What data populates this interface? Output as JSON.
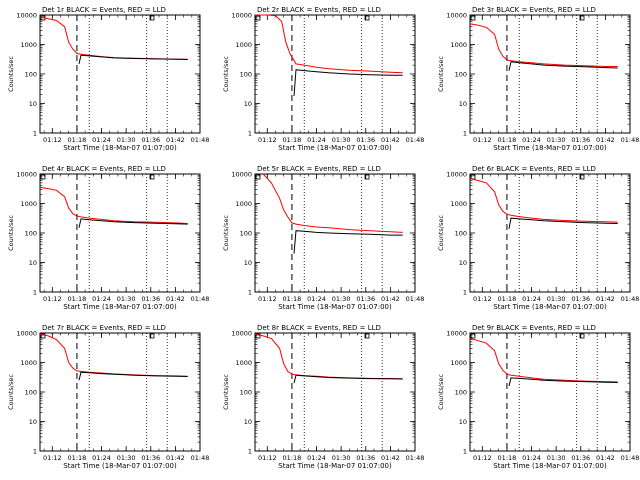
{
  "figure": {
    "xlabel": "Start Time (18-Mar-07 01:07:00)",
    "ylabel": "Counts/sec",
    "x_tick_labels": [
      "01:12",
      "01:18",
      "01:24",
      "01:30",
      "01:36",
      "01:42",
      "01:48"
    ],
    "y_tick_labels": [
      "1",
      "10",
      "100",
      "1000",
      "10000"
    ],
    "colors": {
      "events": "#000000",
      "lld": "#ff0000",
      "axes": "#000000",
      "background": "#ffffff"
    }
  },
  "chart_data": [
    {
      "type": "line",
      "title": "Det 1r BLACK = Events, RED = LLD",
      "xlabel": "Start Time (18-Mar-07 01:07:00)",
      "ylabel": "Counts/sec",
      "x_unit": "minutes after 01:07:00",
      "xlim": [
        2,
        41
      ],
      "ylim": [
        1,
        10000
      ],
      "y_scale": "log",
      "x_ticks": [
        "01:12",
        "01:18",
        "01:24",
        "01:30",
        "01:36",
        "01:42",
        "01:48"
      ],
      "dashed_line_x": 11,
      "dotted_lines_x": [
        14,
        28,
        33
      ],
      "series": [
        {
          "name": "RED",
          "color": "#ff0000",
          "x": [
            2,
            4,
            6,
            8,
            9,
            10,
            11,
            12,
            14,
            17,
            20,
            25,
            30,
            35,
            38
          ],
          "y": [
            8500,
            7500,
            6500,
            4000,
            1200,
            700,
            500,
            470,
            430,
            390,
            360,
            340,
            330,
            320,
            315
          ]
        },
        {
          "name": "BLACK",
          "color": "#000000",
          "x": [
            11.5,
            12,
            14,
            17,
            20,
            25,
            30,
            35,
            38
          ],
          "y": [
            220,
            430,
            410,
            380,
            350,
            335,
            325,
            315,
            310
          ]
        }
      ]
    },
    {
      "type": "line",
      "title": "Det 2r BLACK = Events, RED = LLD",
      "xlabel": "Start Time (18-Mar-07 01:07:00)",
      "ylabel": "Counts/sec",
      "x_unit": "minutes after 01:07:00",
      "xlim": [
        2,
        41
      ],
      "ylim": [
        1,
        10000
      ],
      "y_scale": "log",
      "x_ticks": [
        "01:12",
        "01:18",
        "01:24",
        "01:30",
        "01:36",
        "01:42",
        "01:48"
      ],
      "dashed_line_x": 11,
      "dotted_lines_x": [
        14,
        28,
        33
      ],
      "series": [
        {
          "name": "RED",
          "color": "#ff0000",
          "x": [
            2,
            5,
            7,
            8.5,
            9.5,
            10.5,
            12,
            14,
            17,
            20,
            25,
            30,
            35,
            38
          ],
          "y": [
            10000,
            10000,
            9500,
            6000,
            1200,
            500,
            220,
            200,
            170,
            150,
            135,
            125,
            115,
            110
          ]
        },
        {
          "name": "BLACK",
          "color": "#000000",
          "x": [
            11.5,
            12,
            14,
            17,
            20,
            25,
            30,
            35,
            38
          ],
          "y": [
            18,
            140,
            130,
            120,
            110,
            100,
            95,
            90,
            90
          ]
        }
      ]
    },
    {
      "type": "line",
      "title": "Det 3r BLACK = Events, RED = LLD",
      "xlabel": "Start Time (18-Mar-07 01:07:00)",
      "ylabel": "Counts/sec",
      "x_unit": "minutes after 01:07:00",
      "xlim": [
        2,
        41
      ],
      "ylim": [
        1,
        10000
      ],
      "y_scale": "log",
      "x_ticks": [
        "01:12",
        "01:18",
        "01:24",
        "01:30",
        "01:36",
        "01:42",
        "01:48"
      ],
      "dashed_line_x": 11,
      "dotted_lines_x": [
        14,
        28,
        33
      ],
      "series": [
        {
          "name": "RED",
          "color": "#ff0000",
          "x": [
            2,
            4,
            6,
            8,
            9,
            10,
            11,
            12,
            14,
            17,
            20,
            25,
            30,
            35,
            38
          ],
          "y": [
            5000,
            4500,
            3800,
            2200,
            700,
            400,
            300,
            280,
            260,
            240,
            220,
            200,
            190,
            180,
            180
          ]
        },
        {
          "name": "BLACK",
          "color": "#000000",
          "x": [
            11.5,
            12,
            14,
            17,
            20,
            25,
            30,
            35,
            38
          ],
          "y": [
            130,
            260,
            240,
            220,
            200,
            185,
            175,
            165,
            160
          ]
        }
      ]
    },
    {
      "type": "line",
      "title": "Det 4r BLACK = Events, RED = LLD",
      "xlabel": "Start Time (18-Mar-07 01:07:00)",
      "ylabel": "Counts/sec",
      "x_unit": "minutes after 01:07:00",
      "xlim": [
        2,
        41
      ],
      "ylim": [
        1,
        10000
      ],
      "y_scale": "log",
      "x_ticks": [
        "01:12",
        "01:18",
        "01:24",
        "01:30",
        "01:36",
        "01:42",
        "01:48"
      ],
      "dashed_line_x": 11,
      "dotted_lines_x": [
        14,
        28,
        33
      ],
      "series": [
        {
          "name": "RED",
          "color": "#ff0000",
          "x": [
            2,
            4,
            6,
            8,
            9,
            10,
            11,
            12,
            14,
            17,
            20,
            25,
            30,
            35,
            38
          ],
          "y": [
            3500,
            3200,
            2800,
            1700,
            700,
            450,
            380,
            350,
            320,
            290,
            260,
            240,
            230,
            220,
            210
          ]
        },
        {
          "name": "BLACK",
          "color": "#000000",
          "x": [
            11.5,
            12,
            14,
            17,
            20,
            25,
            30,
            35,
            38
          ],
          "y": [
            150,
            300,
            280,
            260,
            240,
            225,
            215,
            205,
            200
          ]
        }
      ]
    },
    {
      "type": "line",
      "title": "Det 5r BLACK = Events, RED = LLD",
      "xlabel": "Start Time (18-Mar-07 01:07:00)",
      "ylabel": "Counts/sec",
      "x_unit": "minutes after 01:07:00",
      "xlim": [
        2,
        41
      ],
      "ylim": [
        1,
        10000
      ],
      "y_scale": "log",
      "x_ticks": [
        "01:12",
        "01:18",
        "01:24",
        "01:30",
        "01:36",
        "01:42",
        "01:48"
      ],
      "dashed_line_x": 11,
      "dotted_lines_x": [
        14,
        28,
        33
      ],
      "series": [
        {
          "name": "RED",
          "color": "#ff0000",
          "x": [
            4,
            6,
            8,
            9,
            10,
            11,
            12,
            14,
            17,
            20,
            25,
            30,
            35,
            38
          ],
          "y": [
            10000,
            5000,
            1500,
            600,
            350,
            220,
            200,
            180,
            160,
            150,
            130,
            120,
            110,
            105
          ]
        },
        {
          "name": "BLACK",
          "color": "#000000",
          "x": [
            11.5,
            12,
            14,
            17,
            20,
            25,
            30,
            35,
            38
          ],
          "y": [
            20,
            120,
            115,
            105,
            100,
            95,
            90,
            85,
            85
          ]
        }
      ]
    },
    {
      "type": "line",
      "title": "Det 6r BLACK = Events, RED = LLD",
      "xlabel": "Start Time (18-Mar-07 01:07:00)",
      "ylabel": "Counts/sec",
      "x_unit": "minutes after 01:07:00",
      "xlim": [
        2,
        41
      ],
      "ylim": [
        1,
        10000
      ],
      "y_scale": "log",
      "x_ticks": [
        "01:12",
        "01:18",
        "01:24",
        "01:30",
        "01:36",
        "01:42",
        "01:48"
      ],
      "dashed_line_x": 11,
      "dotted_lines_x": [
        14,
        28,
        33
      ],
      "series": [
        {
          "name": "RED",
          "color": "#ff0000",
          "x": [
            2,
            4,
            6,
            8,
            9,
            10,
            11,
            12,
            14,
            17,
            20,
            25,
            30,
            35,
            38
          ],
          "y": [
            7000,
            6000,
            5000,
            2500,
            900,
            550,
            430,
            400,
            360,
            320,
            290,
            265,
            250,
            240,
            235
          ]
        },
        {
          "name": "BLACK",
          "color": "#000000",
          "x": [
            11.5,
            12,
            14,
            17,
            20,
            25,
            30,
            35,
            38
          ],
          "y": [
            140,
            320,
            300,
            280,
            260,
            240,
            225,
            215,
            210
          ]
        }
      ]
    },
    {
      "type": "line",
      "title": "Det 7r BLACK = Events, RED = LLD",
      "xlabel": "Start Time (18-Mar-07 01:07:00)",
      "ylabel": "Counts/sec",
      "x_unit": "minutes after 01:07:00",
      "xlim": [
        2,
        41
      ],
      "ylim": [
        1,
        10000
      ],
      "y_scale": "log",
      "x_ticks": [
        "01:12",
        "01:18",
        "01:24",
        "01:30",
        "01:36",
        "01:42",
        "01:48"
      ],
      "dashed_line_x": 11,
      "dotted_lines_x": [
        14,
        28,
        33
      ],
      "series": [
        {
          "name": "RED",
          "color": "#ff0000",
          "x": [
            2,
            4,
            6,
            8,
            9,
            10,
            11,
            12,
            14,
            17,
            20,
            25,
            30,
            35,
            38
          ],
          "y": [
            9000,
            8000,
            6000,
            3000,
            1000,
            650,
            520,
            500,
            470,
            440,
            410,
            380,
            360,
            350,
            340
          ]
        },
        {
          "name": "BLACK",
          "color": "#000000",
          "x": [
            11.5,
            12,
            14,
            17,
            20,
            25,
            30,
            35,
            38
          ],
          "y": [
            250,
            470,
            450,
            420,
            400,
            370,
            350,
            340,
            335
          ]
        }
      ]
    },
    {
      "type": "line",
      "title": "Det 8r BLACK = Events, RED = LLD",
      "xlabel": "Start Time (18-Mar-07 01:07:00)",
      "ylabel": "Counts/sec",
      "x_unit": "minutes after 01:07:00",
      "xlim": [
        2,
        41
      ],
      "ylim": [
        1,
        10000
      ],
      "y_scale": "log",
      "x_ticks": [
        "01:12",
        "01:18",
        "01:24",
        "01:30",
        "01:36",
        "01:42",
        "01:48"
      ],
      "dashed_line_x": 11,
      "dotted_lines_x": [
        14,
        28,
        33
      ],
      "series": [
        {
          "name": "RED",
          "color": "#ff0000",
          "x": [
            2,
            4,
            6,
            8,
            9,
            10,
            11,
            12,
            14,
            17,
            20,
            25,
            30,
            35,
            38
          ],
          "y": [
            9000,
            8000,
            6500,
            3000,
            900,
            500,
            400,
            380,
            360,
            340,
            320,
            300,
            290,
            285,
            280
          ]
        },
        {
          "name": "BLACK",
          "color": "#000000",
          "x": [
            11.5,
            12,
            14,
            17,
            20,
            25,
            30,
            35,
            38
          ],
          "y": [
            200,
            370,
            350,
            330,
            310,
            295,
            285,
            280,
            275
          ]
        }
      ]
    },
    {
      "type": "line",
      "title": "Det 9r BLACK = Events, RED = LLD",
      "xlabel": "Start Time (18-Mar-07 01:07:00)",
      "ylabel": "Counts/sec",
      "x_unit": "minutes after 01:07:00",
      "xlim": [
        2,
        41
      ],
      "ylim": [
        1,
        10000
      ],
      "y_scale": "log",
      "x_ticks": [
        "01:12",
        "01:18",
        "01:24",
        "01:30",
        "01:36",
        "01:42",
        "01:48"
      ],
      "dashed_line_x": 11,
      "dotted_lines_x": [
        14,
        28,
        33
      ],
      "series": [
        {
          "name": "RED",
          "color": "#ff0000",
          "x": [
            2,
            4,
            6,
            8,
            9,
            10,
            11,
            12,
            14,
            17,
            20,
            25,
            30,
            35,
            38
          ],
          "y": [
            6500,
            5500,
            4500,
            2500,
            900,
            550,
            400,
            370,
            340,
            300,
            270,
            250,
            235,
            225,
            220
          ]
        },
        {
          "name": "BLACK",
          "color": "#000000",
          "x": [
            11.5,
            12,
            14,
            17,
            20,
            25,
            30,
            35,
            38
          ],
          "y": [
            160,
            300,
            290,
            270,
            250,
            235,
            225,
            215,
            210
          ]
        }
      ]
    }
  ]
}
